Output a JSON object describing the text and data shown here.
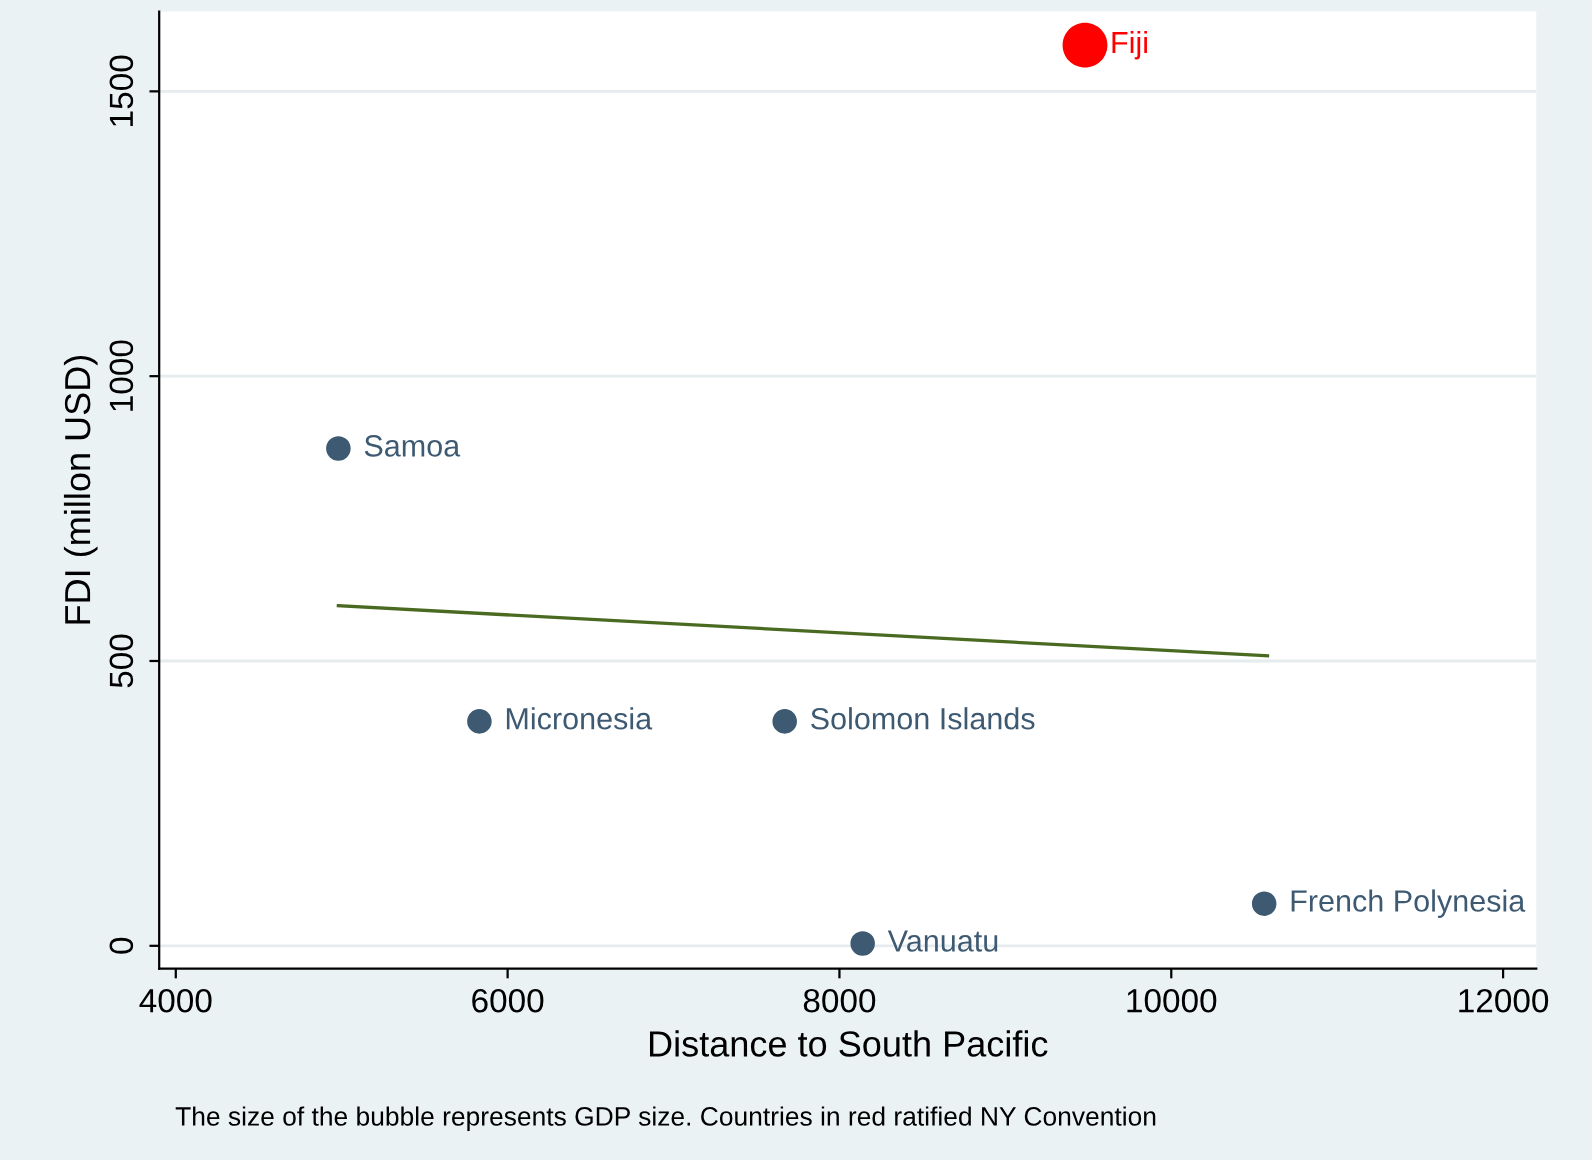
{
  "chart_data": {
    "type": "bubble",
    "xlabel": "Distance to South Pacific",
    "ylabel": "FDI (millon USD)",
    "xlim": [
      3900,
      12200
    ],
    "xticks": [
      4000,
      6000,
      8000,
      10000,
      12000
    ],
    "ylim": [
      -40,
      1640
    ],
    "yticks": [
      0,
      500,
      1000,
      1500
    ],
    "grid": "y",
    "series": [
      {
        "x": [
          4980,
          5830,
          7670,
          8140,
          10560,
          9480
        ],
        "values": [
          873,
          394,
          394,
          4,
          74,
          1581
        ],
        "sizes": [
          0.3,
          0.3,
          0.3,
          0.3,
          0.3,
          1
        ],
        "colors": [
          "#3e5a73",
          "#3e5a73",
          "#3e5a73",
          "#3e5a73",
          "#3e5a73",
          "#ff0000"
        ]
      },
      {
        "type": "line",
        "color": "#4a6a21",
        "x": [
          4980,
          10580
        ],
        "values": [
          597,
          509
        ]
      }
    ],
    "annotations": [
      {
        "text": "Samoa",
        "x": 4980,
        "y": 873
      },
      {
        "text": "Micronesia",
        "x": 5830,
        "y": 394
      },
      {
        "text": "Solomon Islands",
        "x": 7670,
        "y": 394
      },
      {
        "text": "Vanuatu",
        "x": 8140,
        "y": 4
      },
      {
        "text": "French Polynesia",
        "x": 10560,
        "y": 74
      },
      {
        "text": "Fiji",
        "x": 9480,
        "y": 1581
      },
      "The size of the bubble represents GDP size. Countries in red ratified NY Convention"
    ]
  }
}
